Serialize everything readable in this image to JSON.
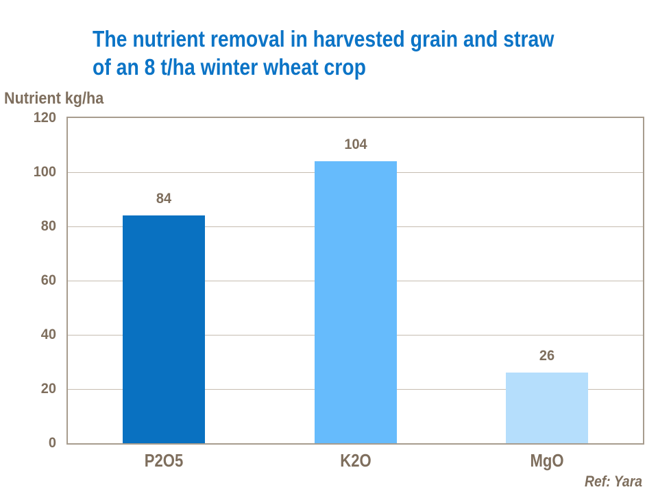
{
  "header": {
    "title_line1": "The nutrient removal in harvested grain and straw",
    "title_line2": "of an 8 t/ha winter wheat crop"
  },
  "footer": {
    "ref": "Ref: Yara"
  },
  "colors": {
    "title_blue": "#0C74C6",
    "label_brown": "#7E6E5D",
    "plot_border": "#A79C8E",
    "gridline": "#C6BCB0"
  },
  "chart_data": {
    "type": "bar",
    "title": "The nutrient removal in harvested grain and straw of an 8 t/ha winter wheat crop",
    "ylabel": "Nutrient kg/ha",
    "xlabel": "",
    "categories": [
      "P2O5",
      "K2O",
      "MgO"
    ],
    "values": [
      84,
      104,
      26
    ],
    "value_labels": [
      "84",
      "104",
      "26"
    ],
    "bar_colors": [
      "#0971C1",
      "#66BBFC",
      "#B5DEFC"
    ],
    "ylim": [
      0,
      120
    ],
    "yticks": [
      0,
      20,
      40,
      60,
      80,
      100,
      120
    ],
    "grid": true,
    "legend_position": "none",
    "ref": "Ref: Yara"
  }
}
